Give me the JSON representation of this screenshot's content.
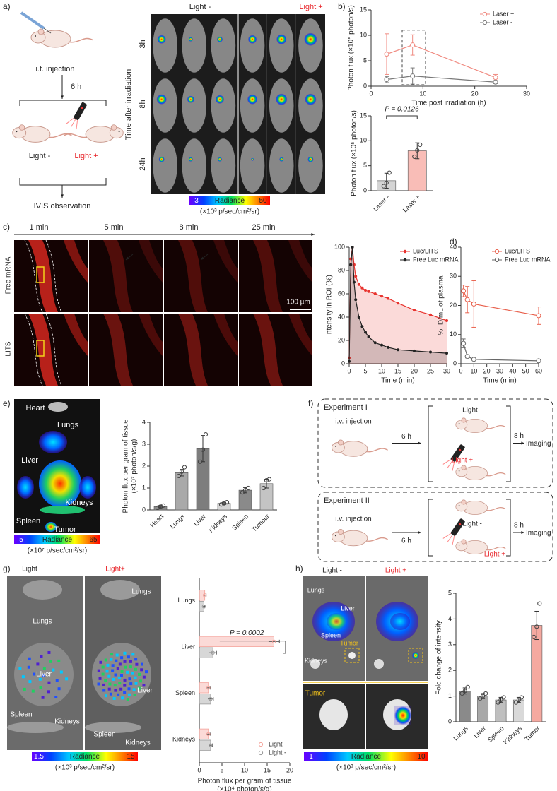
{
  "panel_labels": [
    "a)",
    "b)",
    "c)",
    "d)",
    "e)",
    "f)",
    "g)",
    "h)"
  ],
  "a": {
    "injection": "i.t. injection",
    "interval": "6 h",
    "light_off": "Light -",
    "light_on": "Light +",
    "readout": "IVIS observation",
    "col_off": "Light -",
    "col_on": "Light +",
    "row_axis": "Time after irradiation",
    "rows": [
      "3h",
      "8h",
      "24h"
    ],
    "colorbar": {
      "label": "Radiance",
      "min": 3,
      "max": 50,
      "unit": "(×10³ p/sec/cm²/sr)"
    }
  },
  "c": {
    "times": [
      "1 min",
      "5 min",
      "8 min",
      "25 min"
    ],
    "rows": [
      "Free mRNA",
      "LITS"
    ],
    "scale_bar": "100 µm"
  },
  "e": {
    "organs": [
      "Heart",
      "Lungs",
      "Liver",
      "Kidneys",
      "Spleen",
      "Tumor"
    ],
    "colorbar": {
      "label": "Radiance",
      "min": 5,
      "max": 65,
      "unit": "(×10⁷ p/sec/cm²/sr)"
    }
  },
  "f": {
    "experiments": [
      {
        "title": "Experiment I",
        "injection": "i.v. injection",
        "interval": "6 h",
        "light_off": "Light -",
        "light_on": "Light +",
        "wait": "8 h",
        "readout": "Imaging"
      },
      {
        "title": "Experiment II",
        "injection": "i.v. injection",
        "interval": "6 h",
        "light_off": "Light -",
        "light_on": "Light +",
        "wait": "8 h",
        "readout": "Imaging"
      }
    ]
  },
  "g": {
    "columns": [
      "Light -",
      "Light+"
    ],
    "labels_off": [
      "Lungs",
      "Liver",
      "Spleen",
      "Kidneys"
    ],
    "labels_on": [
      "Lungs",
      "Liver",
      "Spleen",
      "Kidneys"
    ],
    "colorbar": {
      "label": "Radiance",
      "min": 1.5,
      "max": 15,
      "unit": "(×10³ p/sec/cm²/sr)"
    }
  },
  "h": {
    "columns": [
      "Light -",
      "Light +"
    ],
    "labels": [
      "Lungs",
      "Liver",
      "Spleen",
      "Tumor",
      "Kidneys"
    ],
    "inset": "Tumor",
    "colorbar": {
      "label": "Radiance",
      "min": 1,
      "max": 10,
      "unit": "(×10³ p/sec/cm²/sr)"
    }
  },
  "chart_data": [
    {
      "type": "line",
      "ylabel": "Photon flux (×10⁵ photon/s)",
      "xlabel": "Time post irradiation (h)",
      "x": [
        3,
        8,
        24
      ],
      "xlim": [
        0,
        30
      ],
      "xticks": [
        0,
        10,
        20,
        30
      ],
      "ylim": [
        0,
        15
      ],
      "yticks": [
        0,
        5,
        10,
        15
      ],
      "marker": "open-circle",
      "legend": "upper right",
      "series": [
        {
          "name": "Laser +",
          "color": "#f08a80",
          "values": [
            6.3,
            8.1,
            1.7
          ],
          "errors": [
            4.0,
            2.0,
            0.6
          ]
        },
        {
          "name": "Laser -",
          "color": "#7a7a7a",
          "values": [
            1.3,
            2.0,
            0.8
          ],
          "errors": [
            0.6,
            1.6,
            0.3
          ]
        }
      ]
    },
    {
      "type": "bar",
      "ylabel": "Photon flux (×10⁵ photon/s)",
      "categories": [
        "Laser -",
        "Laser +"
      ],
      "values": [
        2.0,
        8.0
      ],
      "errors": [
        1.5,
        1.6
      ],
      "points": [
        [
          0.9,
          1.6,
          3.6
        ],
        [
          6.8,
          8.1,
          9.2
        ]
      ],
      "colors": [
        "#d4d4d4",
        "#f9bdb7"
      ],
      "ylim": [
        0,
        15
      ],
      "yticks": [
        0,
        5,
        10,
        15
      ],
      "annotation": "P = 0.0126"
    },
    {
      "type": "line",
      "ylabel": "Intensity in ROI (%)",
      "xlabel": "Time (min)",
      "x": [
        0,
        0.5,
        1,
        1.5,
        2,
        3,
        4,
        5,
        6,
        8,
        10,
        12,
        15,
        20,
        25,
        30
      ],
      "xlim": [
        0,
        30
      ],
      "xticks": [
        0,
        5,
        10,
        15,
        20,
        25,
        30
      ],
      "ylim": [
        0,
        100
      ],
      "yticks": [
        0,
        20,
        40,
        60,
        80,
        100
      ],
      "marker": "dot",
      "area": true,
      "legend": "upper right",
      "series": [
        {
          "name": "Luc/LITS",
          "color": "#e8332e",
          "values": [
            5,
            90,
            100,
            85,
            75,
            68,
            65,
            63,
            62,
            60,
            58,
            56,
            52,
            46,
            42,
            37
          ]
        },
        {
          "name": "Free Luc mRNA",
          "color": "#222222",
          "values": [
            2,
            85,
            100,
            70,
            55,
            40,
            32,
            27,
            23,
            18,
            16,
            14,
            12,
            11,
            10,
            9
          ]
        }
      ]
    },
    {
      "type": "line",
      "ylabel": "% ID/mL of plasma",
      "xlabel": "Time (min)",
      "x": [
        2,
        5,
        10,
        60
      ],
      "xlim": [
        0,
        60
      ],
      "xticks": [
        0,
        10,
        20,
        30,
        40,
        50,
        60
      ],
      "ylim": [
        0,
        40
      ],
      "yticks": [
        0,
        10,
        20,
        30,
        40
      ],
      "marker": "open-circle",
      "legend": "upper right",
      "series": [
        {
          "name": "Luc/LITS",
          "color": "#e8604c",
          "values": [
            25,
            22,
            20.5,
            16.5
          ],
          "errors": [
            2,
            4.5,
            8,
            3
          ]
        },
        {
          "name": "Free Luc mRNA",
          "color": "#666666",
          "values": [
            7,
            2.5,
            1.5,
            1
          ],
          "errors": [
            1.5,
            0.5,
            0.3,
            0.2
          ]
        }
      ]
    },
    {
      "type": "bar",
      "ylabel": [
        "Photon flux per gram of tissue",
        "(×10⁷ photon/s/g)"
      ],
      "categories": [
        "Heart",
        "Lungs",
        "Liver",
        "Kidneys",
        "Spleen",
        "Tumour"
      ],
      "values": [
        0.15,
        1.7,
        2.8,
        0.3,
        0.9,
        1.2
      ],
      "errors": [
        0.05,
        0.15,
        0.6,
        0.05,
        0.12,
        0.2
      ],
      "points": [
        [
          0.1,
          0.15,
          0.2
        ],
        [
          1.55,
          1.75,
          1.95
        ],
        [
          2.2,
          2.75,
          3.45
        ],
        [
          0.25,
          0.3,
          0.35
        ],
        [
          0.8,
          0.9,
          1.0
        ],
        [
          1.0,
          1.35,
          1.4
        ]
      ],
      "colors": [
        "#8c8c8c",
        "#a9a9a9",
        "#7d7d7d",
        "#d6d6d6",
        "#8a8a8a",
        "#c4c4c4"
      ],
      "ylim": [
        0,
        4
      ],
      "yticks": [
        0,
        1,
        2,
        3,
        4
      ]
    },
    {
      "type": "hbar",
      "xlabel": [
        "Photon flux per gram of tissue",
        "(×10⁴ photon/s/g)"
      ],
      "categories": [
        "Lungs",
        "Liver",
        "Spleen",
        "Kidneys"
      ],
      "xlim": [
        0,
        20
      ],
      "xticks": [
        0,
        5,
        10,
        15,
        20
      ],
      "legend": "lower right",
      "annotation": "P = 0.0002",
      "series": [
        {
          "name": "Light +",
          "color": "#f4a29a",
          "values": [
            1.2,
            16.5,
            2.0,
            2.0
          ],
          "errors": [
            0.3,
            1.2,
            0.5,
            0.5
          ]
        },
        {
          "name": "Light -",
          "color": "#9a9a9a",
          "values": [
            1.0,
            3.0,
            2.5,
            2.5
          ],
          "errors": [
            0.2,
            0.8,
            0.6,
            0.4
          ]
        }
      ]
    },
    {
      "type": "bar",
      "ylabel": "Fold change of intensity",
      "categories": [
        "Lungs",
        "Liver",
        "Spleen",
        "Kidneys",
        "Tumor"
      ],
      "values": [
        1.2,
        1.0,
        0.85,
        0.85,
        3.75
      ],
      "errors": [
        0.12,
        0.1,
        0.1,
        0.1,
        0.55
      ],
      "points": [
        [
          1.1,
          1.2,
          1.35
        ],
        [
          0.9,
          1.0,
          1.1
        ],
        [
          0.75,
          0.85,
          0.95
        ],
        [
          0.75,
          0.85,
          0.95
        ],
        [
          3.3,
          3.7,
          4.6
        ]
      ],
      "colors": [
        "#8a8a8a",
        "#a8a8a8",
        "#bfbfbf",
        "#d9d9d9",
        "#f5a9a0"
      ],
      "ylim": [
        0,
        5
      ],
      "yticks": [
        0,
        1,
        2,
        3,
        4,
        5
      ]
    }
  ]
}
